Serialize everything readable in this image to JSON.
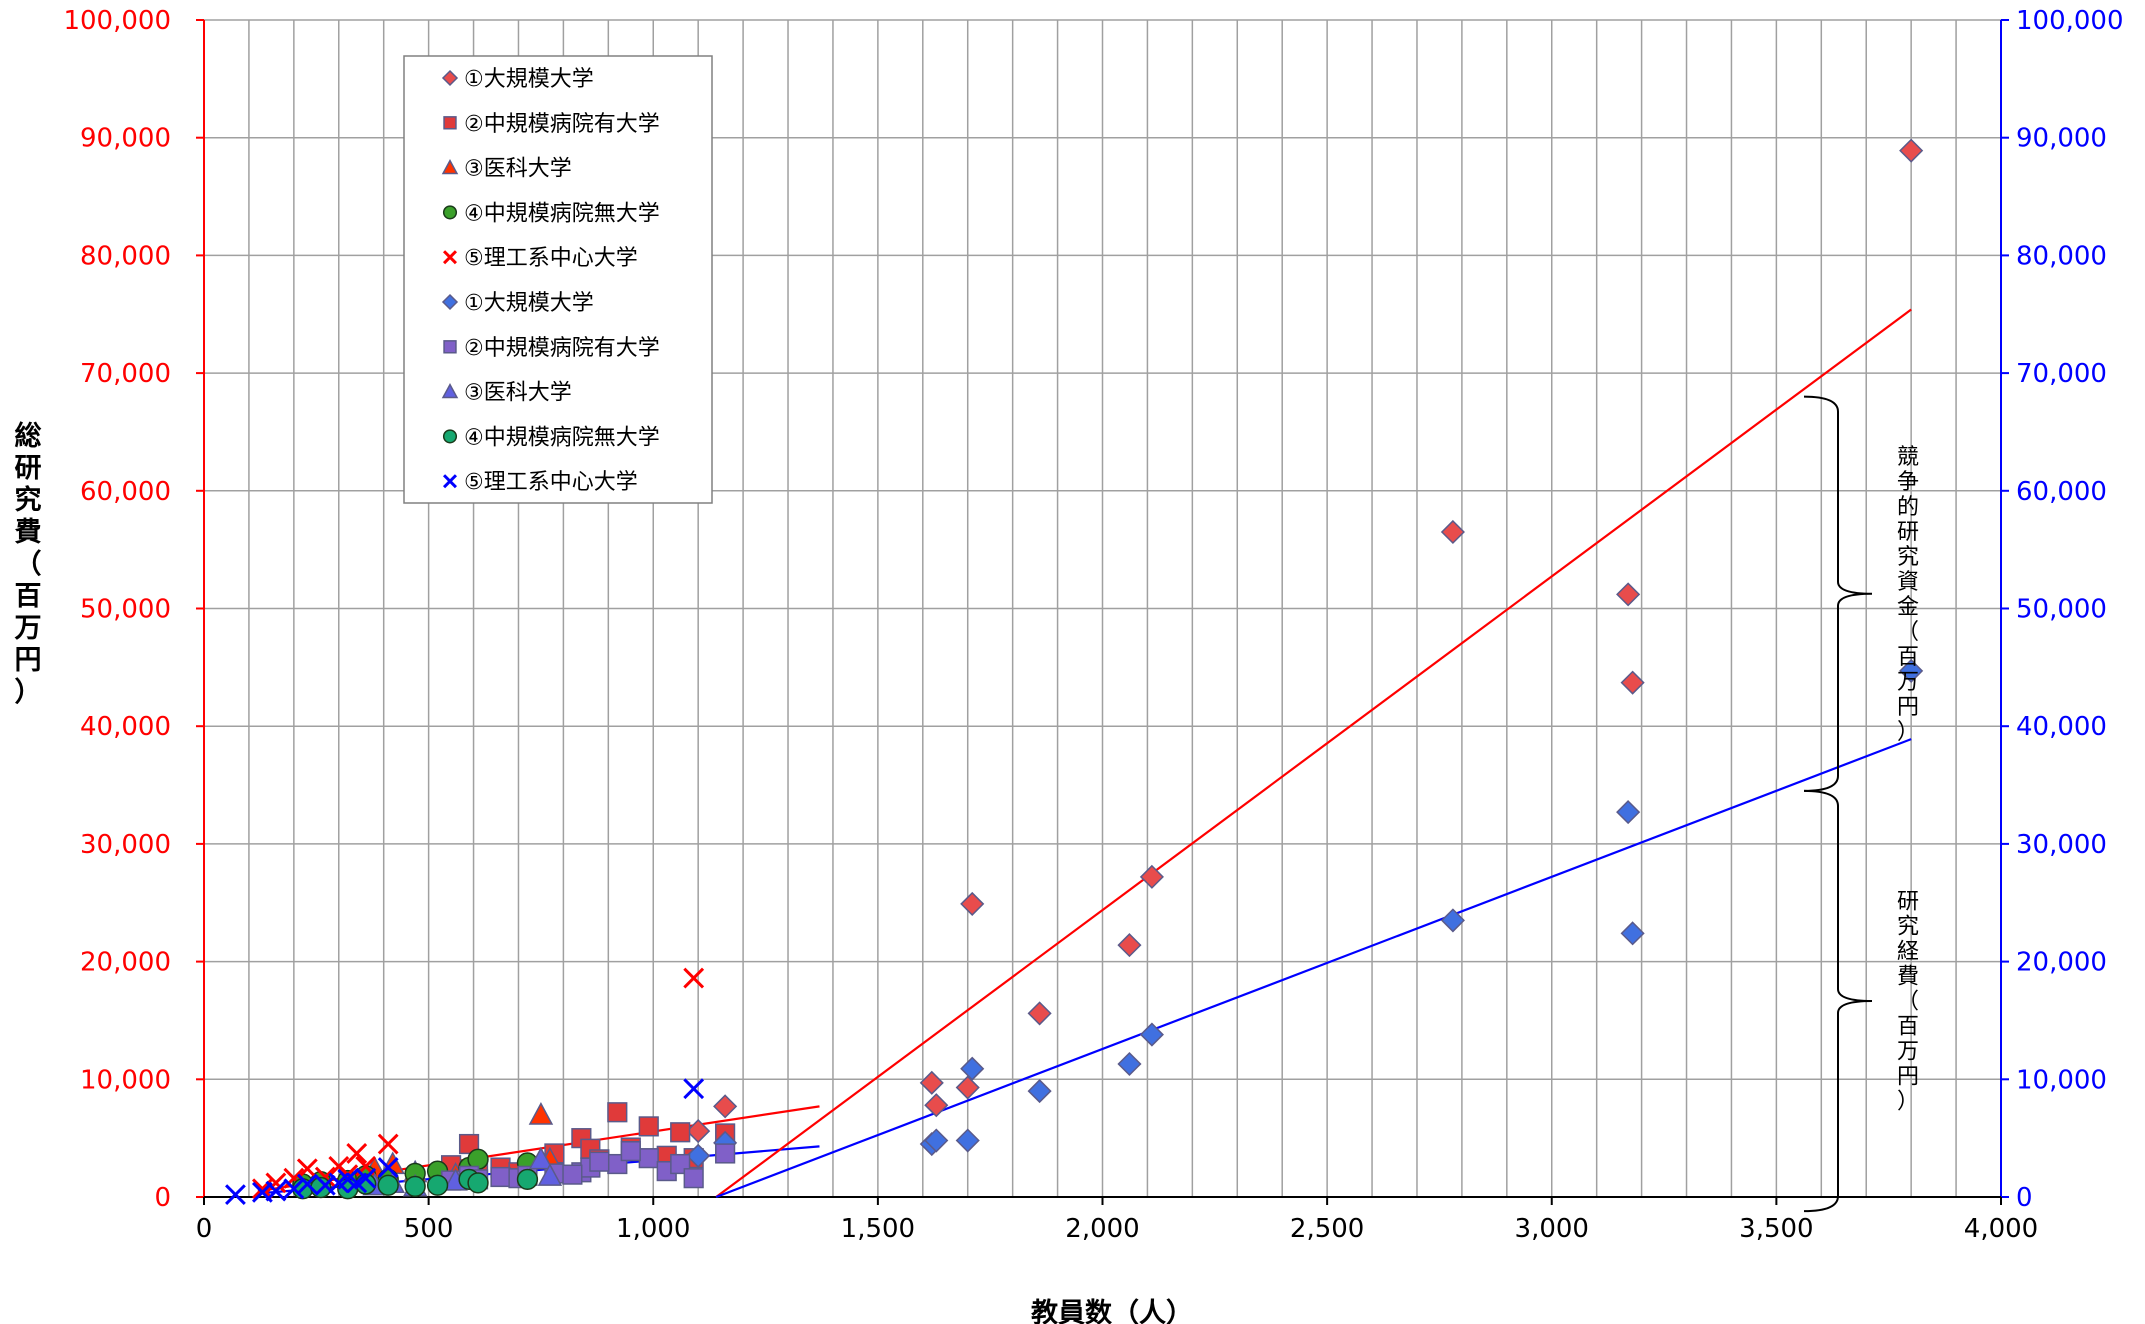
{
  "chart_data": {
    "type": "scatter",
    "xlabel": "教員数（人）",
    "ylabel": "総研究費（百万円）",
    "xlim": [
      0,
      4000
    ],
    "ylim": [
      0,
      100000
    ],
    "y2lim": [
      0,
      100000
    ],
    "x_ticks": [
      "0",
      "500",
      "1,000",
      "1,500",
      "2,000",
      "2,500",
      "3,000",
      "3,500",
      "4,000"
    ],
    "y_ticks": [
      "0",
      "10,000",
      "20,000",
      "30,000",
      "40,000",
      "50,000",
      "60,000",
      "70,000",
      "80,000",
      "90,000",
      "100,000"
    ],
    "y2_ticks": [
      "0",
      "10,000",
      "20,000",
      "30,000",
      "40,000",
      "50,000",
      "60,000",
      "70,000",
      "80,000",
      "90,000",
      "100,000"
    ],
    "grid": true,
    "legend_position": "top-left",
    "series": [
      {
        "name": "①大規模大学",
        "axis": "left",
        "marker": "diamond",
        "color": "#e84c4c",
        "points": [
          [
            1620,
            9700
          ],
          [
            1630,
            7800
          ],
          [
            1700,
            9300
          ],
          [
            1710,
            24900
          ],
          [
            1860,
            15600
          ],
          [
            2060,
            21400
          ],
          [
            2110,
            27200
          ],
          [
            2780,
            56500
          ],
          [
            3170,
            51200
          ],
          [
            3180,
            43700
          ],
          [
            3800,
            88900
          ],
          [
            1100,
            5600
          ],
          [
            1160,
            7700
          ]
        ]
      },
      {
        "name": "②中規模病院有大学",
        "axis": "left",
        "marker": "square",
        "color": "#e03a3a",
        "points": [
          [
            550,
            2700
          ],
          [
            590,
            4500
          ],
          [
            610,
            2200
          ],
          [
            660,
            2500
          ],
          [
            700,
            2100
          ],
          [
            780,
            3700
          ],
          [
            840,
            5000
          ],
          [
            860,
            4100
          ],
          [
            920,
            7200
          ],
          [
            990,
            6000
          ],
          [
            1030,
            3500
          ],
          [
            1060,
            5500
          ],
          [
            1090,
            3300
          ],
          [
            1160,
            5400
          ],
          [
            880,
            3200
          ],
          [
            950,
            4200
          ]
        ]
      },
      {
        "name": "③医科大学",
        "axis": "left",
        "marker": "triangle",
        "color": "#ff3300",
        "points": [
          [
            380,
            2400
          ],
          [
            420,
            2800
          ],
          [
            470,
            2100
          ],
          [
            560,
            1900
          ],
          [
            750,
            7000
          ],
          [
            770,
            3200
          ]
        ]
      },
      {
        "name": "④中規模病院無大学",
        "axis": "left",
        "marker": "circle",
        "color": "#3aa02a",
        "points": [
          [
            220,
            1100
          ],
          [
            260,
            1300
          ],
          [
            320,
            1400
          ],
          [
            360,
            1800
          ],
          [
            410,
            1500
          ],
          [
            470,
            2000
          ],
          [
            520,
            2200
          ],
          [
            590,
            2500
          ],
          [
            610,
            3200
          ],
          [
            720,
            2900
          ]
        ]
      },
      {
        "name": "⑤理工系中心大学",
        "axis": "left",
        "marker": "x",
        "color": "#ff0000",
        "points": [
          [
            130,
            700
          ],
          [
            160,
            1200
          ],
          [
            200,
            1600
          ],
          [
            230,
            2400
          ],
          [
            270,
            1700
          ],
          [
            300,
            2600
          ],
          [
            320,
            1900
          ],
          [
            340,
            3700
          ],
          [
            360,
            2600
          ],
          [
            410,
            4500
          ],
          [
            1090,
            18600
          ]
        ]
      },
      {
        "name": "①大規模大学",
        "axis": "right",
        "marker": "diamond",
        "color": "#4070e0",
        "points": [
          [
            1620,
            4500
          ],
          [
            1630,
            4800
          ],
          [
            1700,
            4800
          ],
          [
            1710,
            10900
          ],
          [
            1860,
            9000
          ],
          [
            2060,
            11300
          ],
          [
            2110,
            13800
          ],
          [
            2780,
            23500
          ],
          [
            3170,
            32700
          ],
          [
            3180,
            22400
          ],
          [
            3800,
            44700
          ],
          [
            1100,
            3500
          ],
          [
            1160,
            4600
          ]
        ]
      },
      {
        "name": "②中規模病院有大学",
        "axis": "right",
        "marker": "square",
        "color": "#8060c8",
        "points": [
          [
            550,
            1400
          ],
          [
            590,
            1800
          ],
          [
            610,
            1500
          ],
          [
            660,
            1700
          ],
          [
            700,
            1600
          ],
          [
            780,
            2000
          ],
          [
            840,
            2100
          ],
          [
            860,
            2500
          ],
          [
            920,
            2800
          ],
          [
            990,
            3300
          ],
          [
            1030,
            2200
          ],
          [
            1060,
            2800
          ],
          [
            1090,
            1600
          ],
          [
            1160,
            3700
          ],
          [
            880,
            3000
          ],
          [
            950,
            3900
          ],
          [
            720,
            1800
          ],
          [
            820,
            1900
          ]
        ]
      },
      {
        "name": "③医科大学",
        "axis": "right",
        "marker": "triangle",
        "color": "#6060e0",
        "points": [
          [
            380,
            1000
          ],
          [
            420,
            1200
          ],
          [
            470,
            900
          ],
          [
            560,
            1400
          ],
          [
            750,
            3200
          ],
          [
            770,
            1800
          ]
        ]
      },
      {
        "name": "④中規模病院無大学",
        "axis": "right",
        "marker": "circle",
        "color": "#16a870",
        "points": [
          [
            220,
            700
          ],
          [
            260,
            800
          ],
          [
            320,
            700
          ],
          [
            360,
            1100
          ],
          [
            410,
            1000
          ],
          [
            470,
            900
          ],
          [
            520,
            1000
          ],
          [
            590,
            1500
          ],
          [
            610,
            1200
          ],
          [
            720,
            1500
          ]
        ]
      },
      {
        "name": "⑤理工系中心大学",
        "axis": "right",
        "marker": "x",
        "color": "#0000ff",
        "points": [
          [
            70,
            200
          ],
          [
            130,
            400
          ],
          [
            160,
            500
          ],
          [
            200,
            700
          ],
          [
            230,
            1100
          ],
          [
            270,
            1000
          ],
          [
            300,
            1200
          ],
          [
            320,
            1500
          ],
          [
            340,
            1200
          ],
          [
            360,
            1600
          ],
          [
            410,
            2500
          ],
          [
            1090,
            9200
          ]
        ]
      }
    ],
    "trendlines": [
      {
        "color": "#ff0000",
        "from": [
          120,
          500
        ],
        "to": [
          1370,
          7700
        ]
      },
      {
        "color": "#0000ff",
        "from": [
          120,
          300
        ],
        "to": [
          1370,
          4300
        ]
      },
      {
        "color": "#ff0000",
        "from": [
          1140,
          0
        ],
        "to": [
          3800,
          75400
        ]
      },
      {
        "color": "#0000ff",
        "from": [
          1140,
          0
        ],
        "to": [
          3800,
          38900
        ]
      }
    ],
    "annotations": [
      {
        "text": "競争的研究資金（百万円）",
        "y_from": 34500,
        "y_to": 68000
      },
      {
        "text": "研究経費（百万円）",
        "y_from": -1200,
        "y_to": 34500
      }
    ]
  }
}
